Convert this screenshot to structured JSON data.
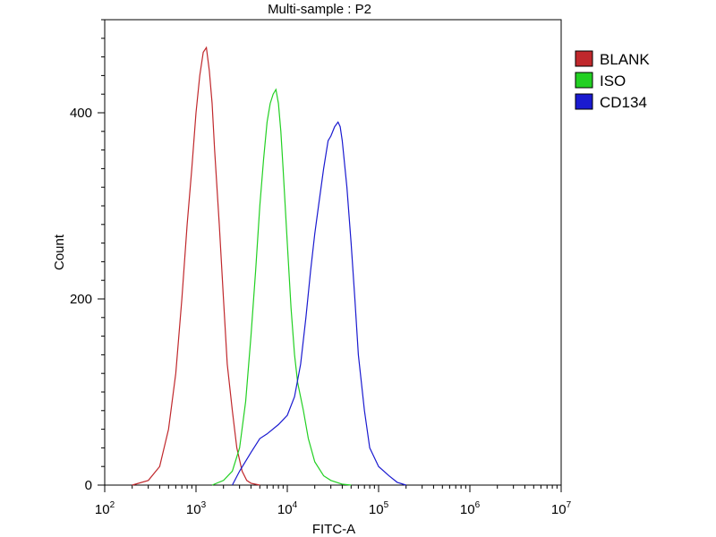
{
  "chart_data": {
    "type": "line",
    "title": "Multi-sample : P2",
    "xlabel": "FITC-A",
    "ylabel": "Count",
    "x_scale": "log",
    "xlim": [
      100,
      10000000
    ],
    "ylim": [
      0,
      500
    ],
    "x_ticks": [
      {
        "value": 100,
        "base": "10",
        "exp": "2"
      },
      {
        "value": 1000,
        "base": "10",
        "exp": "3"
      },
      {
        "value": 10000,
        "base": "10",
        "exp": "4"
      },
      {
        "value": 100000,
        "base": "10",
        "exp": "5"
      },
      {
        "value": 1000000,
        "base": "10",
        "exp": "6"
      },
      {
        "value": 10000000,
        "base": "10",
        "exp": "7"
      }
    ],
    "y_ticks": [
      {
        "value": 0,
        "label": "0"
      },
      {
        "value": 200,
        "label": "200"
      },
      {
        "value": 400,
        "label": "400"
      }
    ],
    "legend_position": "top-right",
    "series": [
      {
        "name": "BLANK",
        "color": "#c0282c",
        "x": [
          200,
          300,
          400,
          500,
          600,
          700,
          800,
          900,
          1000,
          1100,
          1200,
          1300,
          1400,
          1500,
          1600,
          1800,
          2000,
          2200,
          2500,
          2800,
          3200,
          3600,
          4000,
          5000
        ],
        "y": [
          0,
          5,
          20,
          60,
          120,
          200,
          280,
          340,
          400,
          440,
          465,
          470,
          445,
          410,
          360,
          280,
          200,
          130,
          80,
          40,
          15,
          5,
          2,
          0
        ]
      },
      {
        "name": "ISO",
        "color": "#22d022",
        "x": [
          1500,
          2000,
          2500,
          3000,
          3500,
          4000,
          4500,
          5000,
          5500,
          6000,
          6500,
          7000,
          7500,
          8000,
          8500,
          9000,
          10000,
          11000,
          12000,
          13000,
          15000,
          17000,
          20000,
          25000,
          30000,
          40000,
          50000
        ],
        "y": [
          0,
          5,
          15,
          40,
          90,
          160,
          230,
          300,
          350,
          390,
          410,
          420,
          425,
          410,
          380,
          340,
          260,
          190,
          140,
          110,
          80,
          50,
          25,
          10,
          5,
          1,
          0
        ]
      },
      {
        "name": "CD134",
        "color": "#1a1ad0",
        "x": [
          2500,
          3000,
          4000,
          5000,
          6000,
          8000,
          10000,
          12000,
          14000,
          16000,
          18000,
          20000,
          22000,
          25000,
          28000,
          30000,
          33000,
          36000,
          38000,
          40000,
          45000,
          50000,
          55000,
          60000,
          70000,
          80000,
          100000,
          130000,
          160000,
          200000
        ],
        "y": [
          0,
          15,
          35,
          50,
          55,
          65,
          75,
          95,
          130,
          180,
          230,
          270,
          300,
          340,
          370,
          375,
          385,
          390,
          385,
          370,
          320,
          260,
          200,
          140,
          80,
          40,
          20,
          10,
          3,
          0
        ]
      }
    ]
  }
}
